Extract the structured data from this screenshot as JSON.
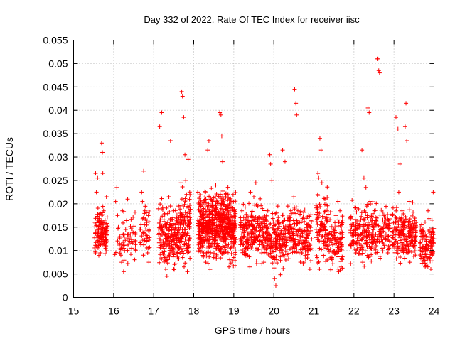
{
  "chart_data": {
    "type": "scatter",
    "title": "Day 332 of 2022, Rate Of TEC Index for receiver iisc",
    "xlabel": "GPS time / hours",
    "ylabel": "ROTI / TECUs",
    "xlim": [
      15,
      24
    ],
    "ylim": [
      0,
      0.055
    ],
    "xticks": [
      15,
      16,
      17,
      18,
      19,
      20,
      21,
      22,
      23,
      24
    ],
    "yticks": [
      0,
      0.005,
      0.01,
      0.015,
      0.02,
      0.025,
      0.03,
      0.035,
      0.04,
      0.045,
      0.05,
      0.055
    ],
    "xtick_labels": [
      "15",
      "16",
      "17",
      "18",
      "19",
      "20",
      "21",
      "22",
      "23",
      "24"
    ],
    "ytick_labels": [
      "0",
      "0.005",
      "0.01",
      "0.015",
      "0.02",
      "0.025",
      "0.03",
      "0.035",
      "0.04",
      "0.045",
      "0.05",
      "0.055"
    ],
    "grid": true,
    "marker": "+",
    "color": "#ff0000",
    "series": [
      {
        "name": "ROTI",
        "points": [
          [
            15.55,
            0.0265
          ],
          [
            15.57,
            0.0225
          ],
          [
            15.6,
            0.0255
          ],
          [
            15.62,
            0.014
          ],
          [
            15.65,
            0.012
          ],
          [
            15.67,
            0.0095
          ],
          [
            15.7,
            0.033
          ],
          [
            15.72,
            0.031
          ],
          [
            15.75,
            0.0185
          ],
          [
            15.77,
            0.016
          ],
          [
            15.8,
            0.0105
          ],
          [
            15.82,
            0.0215
          ],
          [
            15.55,
            0.0095
          ],
          [
            15.6,
            0.0165
          ],
          [
            15.68,
            0.0145
          ],
          [
            15.73,
            0.0265
          ],
          [
            16.05,
            0.0205
          ],
          [
            16.08,
            0.0235
          ],
          [
            16.1,
            0.0175
          ],
          [
            16.12,
            0.015
          ],
          [
            16.15,
            0.0115
          ],
          [
            16.18,
            0.009
          ],
          [
            16.2,
            0.0075
          ],
          [
            16.25,
            0.0055
          ],
          [
            16.3,
            0.0145
          ],
          [
            16.35,
            0.021
          ],
          [
            16.4,
            0.012
          ],
          [
            16.45,
            0.0105
          ],
          [
            16.55,
            0.01
          ],
          [
            16.22,
            0.0185
          ],
          [
            16.7,
            0.0225
          ],
          [
            16.72,
            0.0205
          ],
          [
            16.75,
            0.027
          ],
          [
            16.78,
            0.0185
          ],
          [
            16.8,
            0.0135
          ],
          [
            16.82,
            0.012
          ],
          [
            16.85,
            0.0095
          ],
          [
            16.88,
            0.0075
          ],
          [
            17.15,
            0.0365
          ],
          [
            17.2,
            0.0395
          ],
          [
            17.22,
            0.0145
          ],
          [
            17.25,
            0.0105
          ],
          [
            17.27,
            0.0085
          ],
          [
            17.3,
            0.006
          ],
          [
            17.33,
            0.0045
          ],
          [
            17.35,
            0.016
          ],
          [
            17.38,
            0.0215
          ],
          [
            17.42,
            0.0335
          ],
          [
            17.45,
            0.012
          ],
          [
            17.48,
            0.0095
          ],
          [
            17.5,
            0.0185
          ],
          [
            17.55,
            0.0145
          ],
          [
            17.58,
            0.011
          ],
          [
            17.62,
            0.0195
          ],
          [
            17.7,
            0.044
          ],
          [
            17.72,
            0.043
          ],
          [
            17.75,
            0.0385
          ],
          [
            17.78,
            0.0305
          ],
          [
            17.8,
            0.025
          ],
          [
            17.82,
            0.022
          ],
          [
            17.85,
            0.018
          ],
          [
            17.88,
            0.0155
          ],
          [
            17.9,
            0.0125
          ],
          [
            17.72,
            0.0085
          ],
          [
            17.76,
            0.0065
          ],
          [
            17.84,
            0.0055
          ],
          [
            17.68,
            0.0245
          ],
          [
            17.86,
            0.0295
          ],
          [
            18.1,
            0.0225
          ],
          [
            18.15,
            0.0165
          ],
          [
            18.2,
            0.0125
          ],
          [
            18.25,
            0.0095
          ],
          [
            18.3,
            0.0075
          ],
          [
            18.35,
            0.0315
          ],
          [
            18.38,
            0.0335
          ],
          [
            18.4,
            0.015
          ],
          [
            18.45,
            0.011
          ],
          [
            18.5,
            0.0085
          ],
          [
            18.55,
            0.024
          ],
          [
            18.58,
            0.0205
          ],
          [
            18.6,
            0.0175
          ],
          [
            18.63,
            0.014
          ],
          [
            18.65,
            0.0395
          ],
          [
            18.68,
            0.039
          ],
          [
            18.7,
            0.0345
          ],
          [
            18.72,
            0.029
          ],
          [
            18.75,
            0.0125
          ],
          [
            18.78,
            0.0095
          ],
          [
            18.8,
            0.0215
          ],
          [
            18.85,
            0.0185
          ],
          [
            18.9,
            0.0155
          ],
          [
            18.95,
            0.011
          ],
          [
            19.0,
            0.0085
          ],
          [
            18.2,
            0.0185
          ],
          [
            18.48,
            0.0205
          ],
          [
            18.88,
            0.0065
          ],
          [
            18.33,
            0.0135
          ],
          [
            18.57,
            0.0105
          ],
          [
            19.2,
            0.0185
          ],
          [
            19.25,
            0.0155
          ],
          [
            19.3,
            0.012
          ],
          [
            19.35,
            0.009
          ],
          [
            19.4,
            0.0065
          ],
          [
            19.45,
            0.017
          ],
          [
            19.5,
            0.0215
          ],
          [
            19.55,
            0.0245
          ],
          [
            19.6,
            0.0195
          ],
          [
            19.65,
            0.0135
          ],
          [
            19.7,
            0.0095
          ],
          [
            19.75,
            0.0075
          ],
          [
            19.8,
            0.0165
          ],
          [
            19.42,
            0.0225
          ],
          [
            19.58,
            0.0105
          ],
          [
            19.85,
            0.0185
          ],
          [
            19.9,
            0.0305
          ],
          [
            19.92,
            0.0285
          ],
          [
            19.95,
            0.025
          ],
          [
            19.98,
            0.0115
          ],
          [
            20.0,
            0.0085
          ],
          [
            20.02,
            0.004
          ],
          [
            20.05,
            0.0025
          ],
          [
            20.1,
            0.0195
          ],
          [
            20.15,
            0.013
          ],
          [
            20.2,
            0.0095
          ],
          [
            20.25,
            0.0165
          ],
          [
            20.22,
            0.0315
          ],
          [
            20.28,
            0.029
          ],
          [
            20.35,
            0.0195
          ],
          [
            20.4,
            0.0165
          ],
          [
            20.45,
            0.0125
          ],
          [
            20.5,
            0.0215
          ],
          [
            20.52,
            0.0445
          ],
          [
            20.55,
            0.0415
          ],
          [
            20.57,
            0.039
          ],
          [
            20.6,
            0.0185
          ],
          [
            20.65,
            0.0145
          ],
          [
            20.7,
            0.0095
          ],
          [
            20.75,
            0.0075
          ],
          [
            20.8,
            0.0135
          ],
          [
            20.85,
            0.0105
          ],
          [
            20.9,
            0.006
          ],
          [
            21.1,
            0.0265
          ],
          [
            21.12,
            0.0255
          ],
          [
            21.15,
            0.034
          ],
          [
            21.18,
            0.0315
          ],
          [
            21.2,
            0.0245
          ],
          [
            21.22,
            0.0155
          ],
          [
            21.25,
            0.0115
          ],
          [
            21.08,
            0.0085
          ],
          [
            21.14,
            0.006
          ],
          [
            21.28,
            0.0135
          ],
          [
            21.3,
            0.0105
          ],
          [
            21.4,
            0.0125
          ],
          [
            21.45,
            0.0085
          ],
          [
            21.5,
            0.0145
          ],
          [
            21.55,
            0.0175
          ],
          [
            21.6,
            0.0205
          ],
          [
            21.65,
            0.0185
          ],
          [
            21.7,
            0.0155
          ],
          [
            21.58,
            0.0095
          ],
          [
            21.62,
            0.0055
          ],
          [
            21.95,
            0.0135
          ],
          [
            22.0,
            0.0115
          ],
          [
            22.05,
            0.0095
          ],
          [
            22.1,
            0.0145
          ],
          [
            22.15,
            0.0125
          ],
          [
            22.2,
            0.0315
          ],
          [
            22.25,
            0.0255
          ],
          [
            22.3,
            0.0235
          ],
          [
            22.35,
            0.0405
          ],
          [
            22.38,
            0.0395
          ],
          [
            22.4,
            0.0205
          ],
          [
            22.45,
            0.0165
          ],
          [
            22.5,
            0.0125
          ],
          [
            22.55,
            0.0095
          ],
          [
            22.58,
            0.051
          ],
          [
            22.6,
            0.051
          ],
          [
            22.62,
            0.0485
          ],
          [
            22.64,
            0.048
          ],
          [
            22.65,
            0.0145
          ],
          [
            22.7,
            0.0105
          ],
          [
            22.75,
            0.0175
          ],
          [
            22.8,
            0.0135
          ],
          [
            22.85,
            0.0095
          ],
          [
            22.22,
            0.0075
          ],
          [
            22.42,
            0.0105
          ],
          [
            22.32,
            0.0195
          ],
          [
            23.05,
            0.0385
          ],
          [
            23.1,
            0.036
          ],
          [
            23.15,
            0.0285
          ],
          [
            23.2,
            0.0185
          ],
          [
            23.22,
            0.0155
          ],
          [
            23.25,
            0.0125
          ],
          [
            23.28,
            0.0365
          ],
          [
            23.3,
            0.0415
          ],
          [
            23.32,
            0.0335
          ],
          [
            23.35,
            0.0095
          ],
          [
            23.4,
            0.0075
          ],
          [
            23.45,
            0.0145
          ],
          [
            23.5,
            0.0115
          ],
          [
            23.12,
            0.0225
          ],
          [
            23.38,
            0.0205
          ],
          [
            23.7,
            0.0145
          ],
          [
            23.75,
            0.0125
          ],
          [
            23.8,
            0.0105
          ],
          [
            23.85,
            0.0185
          ],
          [
            23.9,
            0.0085
          ],
          [
            23.95,
            0.0165
          ],
          [
            23.98,
            0.0225
          ],
          [
            24.0,
            0.0125
          ],
          [
            23.78,
            0.0065
          ],
          [
            23.92,
            0.006
          ]
        ],
        "bands": [
          {
            "x": [
              15.52,
              15.85
            ],
            "y": [
              0.006,
              0.022
            ],
            "n": 120
          },
          {
            "x": [
              16.02,
              16.55
            ],
            "y": [
              0.005,
              0.02
            ],
            "n": 60
          },
          {
            "x": [
              16.65,
              16.9
            ],
            "y": [
              0.007,
              0.022
            ],
            "n": 40
          },
          {
            "x": [
              17.12,
              17.65
            ],
            "y": [
              0.0045,
              0.022
            ],
            "n": 200
          },
          {
            "x": [
              17.65,
              17.92
            ],
            "y": [
              0.0055,
              0.026
            ],
            "n": 110
          },
          {
            "x": [
              18.1,
              19.05
            ],
            "y": [
              0.0055,
              0.025
            ],
            "n": 650
          },
          {
            "x": [
              19.15,
              19.85
            ],
            "y": [
              0.006,
              0.022
            ],
            "n": 230
          },
          {
            "x": [
              19.85,
              20.3
            ],
            "y": [
              0.004,
              0.021
            ],
            "n": 160
          },
          {
            "x": [
              20.3,
              20.95
            ],
            "y": [
              0.0055,
              0.0215
            ],
            "n": 190
          },
          {
            "x": [
              21.05,
              21.35
            ],
            "y": [
              0.005,
              0.026
            ],
            "n": 90
          },
          {
            "x": [
              21.35,
              21.72
            ],
            "y": [
              0.004,
              0.02
            ],
            "n": 100
          },
          {
            "x": [
              21.9,
              22.9
            ],
            "y": [
              0.006,
              0.022
            ],
            "n": 260
          },
          {
            "x": [
              22.95,
              23.55
            ],
            "y": [
              0.006,
              0.021
            ],
            "n": 200
          },
          {
            "x": [
              23.65,
              24.0
            ],
            "y": [
              0.005,
              0.018
            ],
            "n": 110
          }
        ]
      }
    ]
  }
}
